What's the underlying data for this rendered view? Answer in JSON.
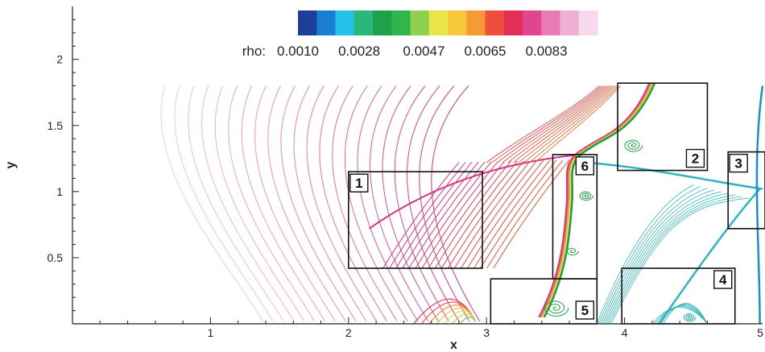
{
  "chart_data": {
    "type": "contour",
    "title": "",
    "xlabel": "x",
    "ylabel": "y",
    "xlim": [
      0,
      5
    ],
    "ylim": [
      0,
      2.4
    ],
    "x_ticks": [
      1,
      2,
      3,
      4,
      5
    ],
    "y_ticks": [
      0.5,
      1,
      1.5,
      2
    ],
    "x_tick_labels": [
      "1",
      "2",
      "3",
      "4",
      "5"
    ],
    "y_tick_labels": [
      "0.5",
      "1",
      "1.5",
      "2"
    ],
    "colorbar": {
      "variable": "rho:",
      "min": 0.001,
      "max": 0.0098,
      "tick_labels": [
        "0.0010",
        "0.0028",
        "0.0047",
        "0.0065",
        "0.0083"
      ],
      "colors": [
        "#1c3f9a",
        "#1a7fd1",
        "#22c1e8",
        "#29b87a",
        "#1fa04a",
        "#2fb54c",
        "#8fd14f",
        "#e9e64a",
        "#f7c73c",
        "#f59a35",
        "#ee4e3a",
        "#e22f55",
        "#e0468c",
        "#e77bb6",
        "#efb0d4",
        "#f6d9ea"
      ]
    },
    "boxes": [
      {
        "label": "1",
        "x0": 2.0,
        "x1": 2.97,
        "y0": 0.42,
        "y1": 1.15
      },
      {
        "label": "2",
        "x0": 3.95,
        "x1": 4.6,
        "y0": 1.16,
        "y1": 1.82
      },
      {
        "label": "3",
        "x0": 4.75,
        "x1": 5.05,
        "y0": 0.72,
        "y1": 1.3
      },
      {
        "label": "4",
        "x0": 3.98,
        "x1": 4.8,
        "y0": 0.0,
        "y1": 0.42
      },
      {
        "label": "5",
        "x0": 3.03,
        "x1": 3.8,
        "y0": 0.0,
        "y1": 0.34
      },
      {
        "label": "6",
        "x0": 3.48,
        "x1": 3.8,
        "y0": 0.34,
        "y1": 1.28
      }
    ]
  }
}
